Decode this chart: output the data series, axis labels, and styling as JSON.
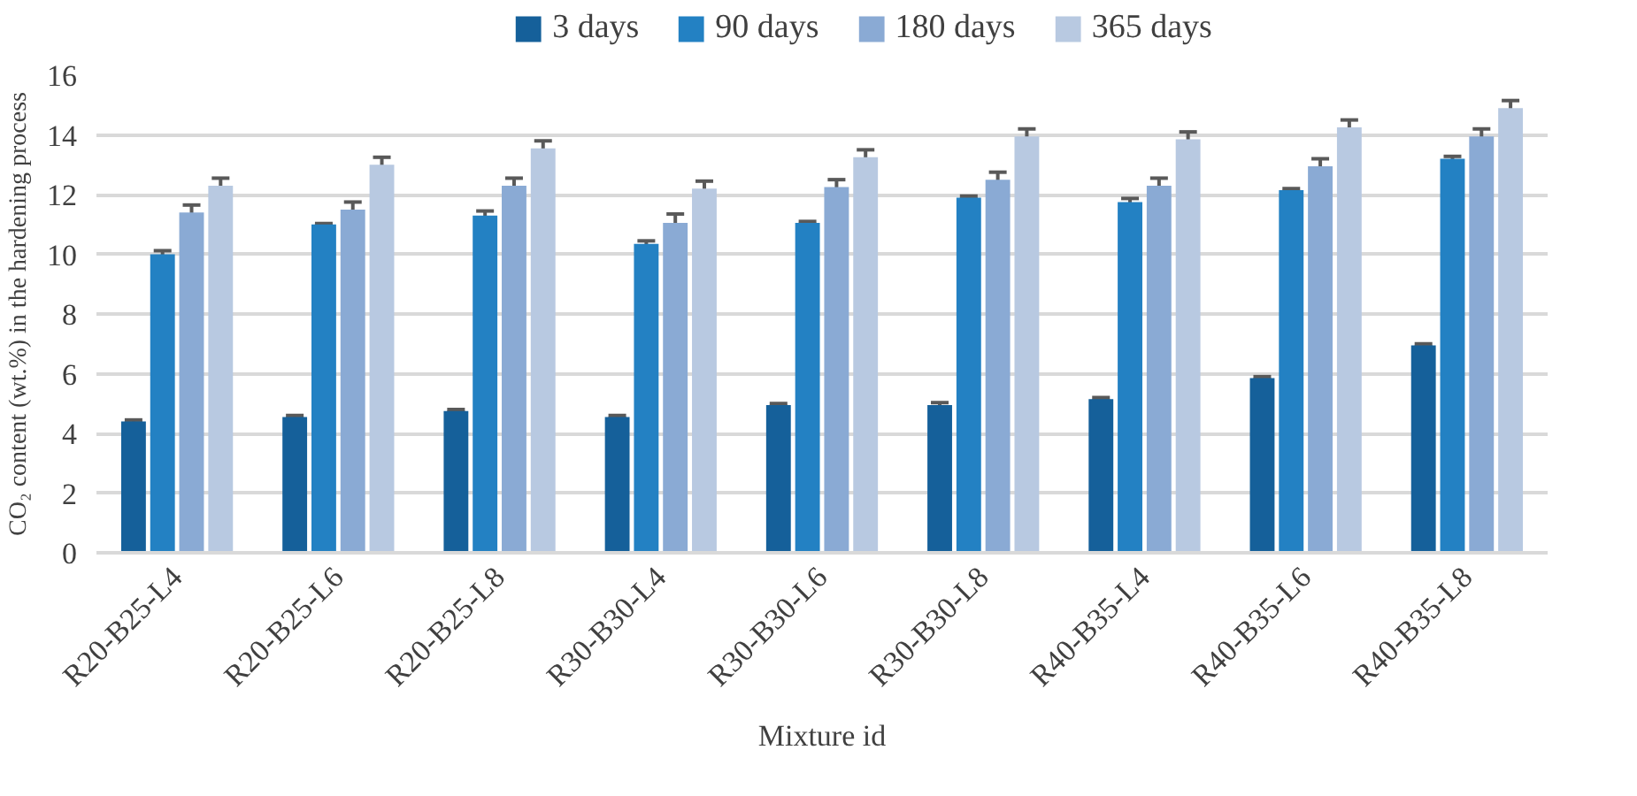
{
  "chart_data": {
    "type": "bar",
    "xlabel": "Mixture id",
    "ylabel": "CO₂ content (wt.%) in the hardening process",
    "categories": [
      "R20-B25-L4",
      "R20-B25-L6",
      "R20-B25-L8",
      "R30-B30-L4",
      "R30-B30-L6",
      "R30-B30-L8",
      "R40-B35-L4",
      "R40-B35-L6",
      "R40-B35-L8"
    ],
    "series": [
      {
        "name": "3 days",
        "color": "#15609a",
        "values": [
          4.4,
          4.55,
          4.75,
          4.55,
          4.95,
          4.95,
          5.15,
          5.85,
          6.95
        ],
        "errors": [
          0.05,
          0.05,
          0.05,
          0.05,
          0.05,
          0.08,
          0.05,
          0.05,
          0.05
        ]
      },
      {
        "name": "90 days",
        "color": "#2381c3",
        "values": [
          10.0,
          11.0,
          11.3,
          10.35,
          11.05,
          11.9,
          11.75,
          12.15,
          13.2
        ],
        "errors": [
          0.12,
          0.03,
          0.15,
          0.1,
          0.05,
          0.05,
          0.12,
          0.05,
          0.08
        ]
      },
      {
        "name": "180 days",
        "color": "#8aaad4",
        "values": [
          11.4,
          11.5,
          12.3,
          11.05,
          12.25,
          12.5,
          12.3,
          12.95,
          13.95
        ],
        "errors": [
          0.25,
          0.25,
          0.25,
          0.3,
          0.25,
          0.25,
          0.25,
          0.25,
          0.25
        ]
      },
      {
        "name": "365 days",
        "color": "#b8c9e1",
        "values": [
          12.3,
          13.0,
          13.55,
          12.2,
          13.25,
          13.95,
          13.85,
          14.25,
          14.9
        ],
        "errors": [
          0.25,
          0.25,
          0.25,
          0.25,
          0.25,
          0.25,
          0.25,
          0.25,
          0.25
        ]
      }
    ],
    "ylim": [
      0,
      16
    ],
    "yticks": [
      0,
      2,
      4,
      6,
      8,
      10,
      12,
      14,
      16
    ],
    "grid": "y",
    "legend": "top"
  }
}
